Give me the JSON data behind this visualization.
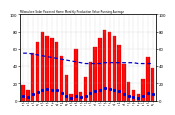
{
  "title": "Milwaukee Solar Powered Home Monthly Production Value Running Average",
  "bar_color": "#ff0000",
  "line_color": "#0000cc",
  "background_color": "#ffffff",
  "grid_color": "#aaaaaa",
  "months": [
    "Jan\n06",
    "Feb\n06",
    "Mar\n06",
    "Apr\n06",
    "May\n06",
    "Jun\n06",
    "Jul\n06",
    "Aug\n06",
    "Sep\n06",
    "Oct\n06",
    "Nov\n06",
    "Dec\n06",
    "Jan\n07",
    "Feb\n07",
    "Mar\n07",
    "Apr\n07",
    "May\n07",
    "Jun\n07",
    "Jul\n07",
    "Aug\n07",
    "Sep\n07",
    "Oct\n07",
    "Nov\n07",
    "Dec\n07",
    "Jan\n08",
    "Feb\n08",
    "Mar\n08",
    "Apr\n08"
  ],
  "bar_values": [
    18,
    12,
    55,
    68,
    80,
    75,
    72,
    68,
    52,
    30,
    8,
    60,
    10,
    28,
    45,
    62,
    72,
    82,
    80,
    75,
    65,
    42,
    22,
    12,
    8,
    25,
    50,
    38
  ],
  "small_values": [
    5,
    4,
    8,
    10,
    12,
    14,
    13,
    12,
    9,
    6,
    3,
    5,
    4,
    6,
    9,
    11,
    13,
    15,
    14,
    13,
    11,
    8,
    5,
    4,
    3,
    5,
    9,
    8
  ],
  "running_avg": [
    55,
    55,
    54,
    53,
    52,
    51,
    50,
    49,
    48,
    47,
    46,
    45,
    44,
    43,
    43,
    43,
    43,
    44,
    44,
    44,
    44,
    44,
    44,
    44,
    43,
    43,
    43,
    43
  ],
  "ylim": [
    0,
    100
  ],
  "yticks": [
    0,
    20,
    40,
    60,
    80,
    100
  ]
}
